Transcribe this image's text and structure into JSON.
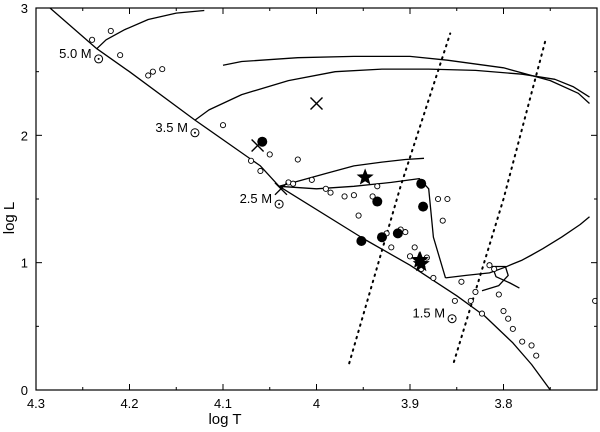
{
  "chart_data": {
    "type": "scatter",
    "title": "",
    "xlabel": "log T",
    "ylabel": "log L",
    "xlim": [
      4.3,
      3.7
    ],
    "ylim": [
      0,
      3
    ],
    "x_reversed": true,
    "grid": false,
    "x_ticks": [
      4.3,
      4.2,
      4.1,
      4.0,
      3.9,
      3.8
    ],
    "x_tick_labels": [
      "4.3",
      "4.2",
      "4.1",
      "4",
      "3.9",
      "3.8"
    ],
    "y_ticks": [
      0,
      1,
      2,
      3
    ],
    "y_tick_labels": [
      "0",
      "1",
      "2",
      "3"
    ],
    "mass_labels": [
      {
        "text": "5.0 M",
        "x": 4.233,
        "y": 2.6
      },
      {
        "text": "3.5 M",
        "x": 4.13,
        "y": 2.02
      },
      {
        "text": "2.5 M",
        "x": 4.04,
        "y": 1.46
      },
      {
        "text": "1.5 M",
        "x": 3.855,
        "y": 0.56
      }
    ],
    "zams": {
      "x": [
        4.285,
        4.235,
        4.2,
        4.13,
        4.06,
        4.04,
        3.95,
        3.9,
        3.85,
        3.82,
        3.79,
        3.77,
        3.75
      ],
      "y": [
        3.0,
        2.68,
        2.5,
        2.12,
        1.76,
        1.6,
        1.19,
        0.98,
        0.74,
        0.58,
        0.37,
        0.2,
        0.0
      ]
    },
    "tracks": [
      {
        "x": [
          4.235,
          4.225,
          4.205,
          4.18,
          4.15,
          4.12
        ],
        "y": [
          2.68,
          2.75,
          2.83,
          2.91,
          2.96,
          2.98
        ]
      },
      {
        "x": [
          4.13,
          4.115,
          4.08,
          4.03,
          3.98,
          3.93,
          3.88,
          3.83,
          3.78,
          3.745,
          3.725,
          3.708
        ],
        "y": [
          2.12,
          2.2,
          2.32,
          2.43,
          2.5,
          2.52,
          2.52,
          2.51,
          2.48,
          2.44,
          2.38,
          2.3
        ]
      },
      {
        "x": [
          4.1,
          4.08,
          4.02,
          3.96,
          3.9,
          3.86,
          3.8,
          3.75,
          3.72,
          3.708
        ],
        "y": [
          2.55,
          2.58,
          2.61,
          2.62,
          2.62,
          2.59,
          2.53,
          2.43,
          2.33,
          2.25
        ]
      },
      {
        "x": [
          4.04,
          4.02,
          3.99,
          3.96,
          3.93,
          3.905,
          3.885
        ],
        "y": [
          1.6,
          1.64,
          1.7,
          1.76,
          1.79,
          1.81,
          1.82
        ]
      },
      {
        "x": [
          4.04,
          4.0,
          3.96,
          3.92,
          3.89,
          3.88,
          3.875,
          3.862
        ],
        "y": [
          1.6,
          1.58,
          1.6,
          1.63,
          1.66,
          1.58,
          1.2,
          0.88
        ]
      },
      {
        "x": [
          3.862,
          3.84,
          3.815,
          3.8,
          3.79,
          3.78,
          3.77,
          3.758,
          3.738,
          3.718,
          3.708
        ],
        "y": [
          0.88,
          0.9,
          0.92,
          0.96,
          0.99,
          1.02,
          1.06,
          1.11,
          1.2,
          1.3,
          1.36
        ]
      },
      {
        "x": [
          3.823,
          3.805,
          3.795,
          3.798,
          3.812,
          3.808,
          3.793,
          3.783
        ],
        "y": [
          0.78,
          0.82,
          0.9,
          0.97,
          0.97,
          0.89,
          0.84,
          0.8
        ]
      }
    ],
    "instability_strip": [
      {
        "x": [
          3.965,
          3.91,
          3.857
        ],
        "y": [
          0.21,
          1.6,
          2.8
        ]
      },
      {
        "x": [
          3.853,
          3.8,
          3.755
        ],
        "y": [
          0.22,
          1.5,
          2.75
        ]
      }
    ],
    "open_circles": {
      "x": [
        4.24,
        4.22,
        4.21,
        4.18,
        4.175,
        4.165,
        4.1,
        4.07,
        4.06,
        4.05,
        4.03,
        4.025,
        4.02,
        4.005,
        3.99,
        3.985,
        3.97,
        3.96,
        3.955,
        3.94,
        3.935,
        3.925,
        3.92,
        3.91,
        3.905,
        3.9,
        3.895,
        3.888,
        3.882,
        3.875,
        3.87,
        3.865,
        3.86,
        3.852,
        3.845,
        3.835,
        3.83,
        3.823,
        3.815,
        3.81,
        3.805,
        3.8,
        3.795,
        3.79,
        3.78,
        3.77,
        3.765,
        3.702
      ],
      "y": [
        2.75,
        2.82,
        2.63,
        2.47,
        2.5,
        2.52,
        2.08,
        1.8,
        1.72,
        1.85,
        1.63,
        1.62,
        1.81,
        1.65,
        1.58,
        1.55,
        1.52,
        1.53,
        1.37,
        1.52,
        1.6,
        1.23,
        1.12,
        1.26,
        1.24,
        1.05,
        1.12,
        0.95,
        1.04,
        0.88,
        1.5,
        1.33,
        1.5,
        0.7,
        0.85,
        0.7,
        0.77,
        0.6,
        0.98,
        0.95,
        0.75,
        0.62,
        0.56,
        0.48,
        0.38,
        0.35,
        0.27,
        0.7
      ]
    },
    "filled_circles": {
      "x": [
        4.058,
        3.952,
        3.935,
        3.93,
        3.888,
        3.886,
        3.913
      ],
      "y": [
        1.95,
        1.17,
        1.48,
        1.2,
        1.62,
        1.44,
        1.23
      ]
    },
    "stars": {
      "x": [
        3.948,
        3.89,
        3.889,
        3.888
      ],
      "y": [
        1.67,
        1.02,
        1.02,
        0.99
      ]
    },
    "crosses": {
      "x": [
        4.0,
        4.063,
        4.038
      ],
      "y": [
        2.25,
        1.92,
        1.58
      ]
    }
  }
}
